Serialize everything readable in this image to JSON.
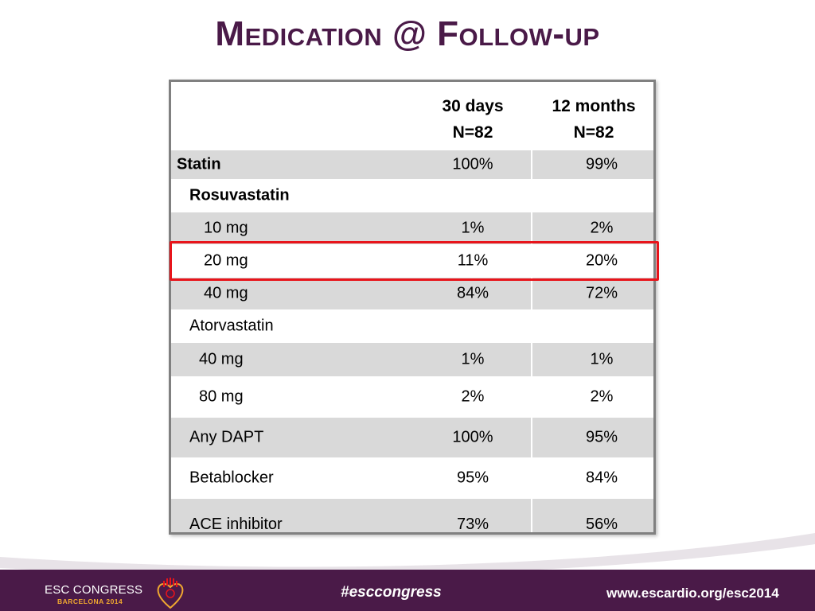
{
  "slide": {
    "title": "Medication @ Follow-up"
  },
  "table": {
    "headers": {
      "col1_line1": "30 days",
      "col1_line2": "N=82",
      "col2_line1": "12 months",
      "col2_line2": "N=82"
    },
    "rows": [
      {
        "label": "Statin",
        "v1": "100%",
        "v2": "99%"
      },
      {
        "label": "Rosuvastatin",
        "v1": "",
        "v2": ""
      },
      {
        "label": "10 mg",
        "v1": "1%",
        "v2": "2%"
      },
      {
        "label": "20 mg",
        "v1": "11%",
        "v2": "20%"
      },
      {
        "label": "40 mg",
        "v1": "84%",
        "v2": "72%"
      },
      {
        "label": "Atorvastatin",
        "v1": "",
        "v2": ""
      },
      {
        "label": "40 mg",
        "v1": "1%",
        "v2": "1%"
      },
      {
        "label": "80 mg",
        "v1": "2%",
        "v2": "2%"
      },
      {
        "label": "Any DAPT",
        "v1": "100%",
        "v2": "95%"
      },
      {
        "label": "Betablocker",
        "v1": "95%",
        "v2": "84%"
      },
      {
        "label": "ACE inhibitor",
        "v1": "73%",
        "v2": "56%"
      }
    ],
    "highlight_color": "#e8141b",
    "shade_color": "#d9d9d9"
  },
  "footer": {
    "logo_text": "ESC CONGRESS",
    "logo_sub": "BARCELONA 2014",
    "hashtag": "#esccongress",
    "url": "www.escardio.org/esc2014",
    "bar_color": "#4a1a48",
    "emblem": "heart-emblem-icon"
  }
}
